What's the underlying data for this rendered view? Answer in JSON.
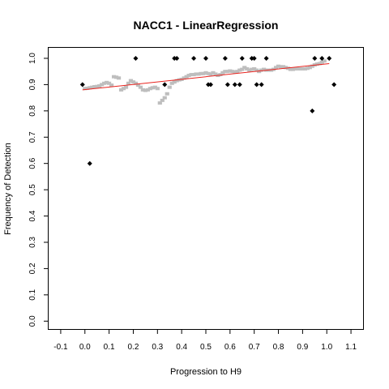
{
  "chart_data": {
    "type": "scatter",
    "title": "NACC1 - LinearRegression",
    "xlabel": "Progression to H9",
    "ylabel": "Frequency of Detection",
    "xlim": [
      -0.15,
      1.15
    ],
    "ylim": [
      -0.03,
      1.04
    ],
    "xticks": [
      -0.1,
      0.0,
      0.1,
      0.2,
      0.3,
      0.4,
      0.5,
      0.6,
      0.7,
      0.8,
      0.9,
      1.0,
      1.1
    ],
    "xtick_labels": [
      "-0.1",
      "0.0",
      "0.1",
      "0.2",
      "0.3",
      "0.4",
      "0.5",
      "0.6",
      "0.7",
      "0.8",
      "0.9",
      "1.0",
      "1.1"
    ],
    "yticks": [
      0.0,
      0.1,
      0.2,
      0.3,
      0.4,
      0.5,
      0.6,
      0.7,
      0.8,
      0.9,
      1.0
    ],
    "ytick_labels": [
      "0.0",
      "0.1",
      "0.2",
      "0.3",
      "0.4",
      "0.5",
      "0.6",
      "0.7",
      "0.8",
      "0.9",
      "1.0"
    ],
    "grid": false,
    "colors": {
      "observed": "#000000",
      "fitted": "#bebebe",
      "regression": "#e8231e"
    },
    "series": [
      {
        "kind": "observed",
        "points": [
          [
            -0.01,
            0.9
          ],
          [
            0.02,
            0.6
          ],
          [
            0.21,
            1.0
          ],
          [
            0.33,
            0.9
          ],
          [
            0.37,
            1.0
          ],
          [
            0.38,
            1.0
          ],
          [
            0.45,
            1.0
          ],
          [
            0.5,
            1.0
          ],
          [
            0.51,
            0.9
          ],
          [
            0.52,
            0.9
          ],
          [
            0.58,
            1.0
          ],
          [
            0.59,
            0.9
          ],
          [
            0.62,
            0.9
          ],
          [
            0.64,
            0.9
          ],
          [
            0.65,
            1.0
          ],
          [
            0.69,
            1.0
          ],
          [
            0.7,
            1.0
          ],
          [
            0.71,
            0.9
          ],
          [
            0.73,
            0.9
          ],
          [
            0.75,
            1.0
          ],
          [
            0.94,
            0.8
          ],
          [
            0.95,
            1.0
          ],
          [
            0.98,
            1.0
          ],
          [
            1.01,
            1.0
          ],
          [
            1.03,
            0.9
          ]
        ]
      },
      {
        "kind": "fitted",
        "points": [
          [
            0.0,
            0.885
          ],
          [
            0.01,
            0.886
          ],
          [
            0.02,
            0.888
          ],
          [
            0.03,
            0.89
          ],
          [
            0.04,
            0.892
          ],
          [
            0.05,
            0.893
          ],
          [
            0.06,
            0.895
          ],
          [
            0.07,
            0.9
          ],
          [
            0.08,
            0.905
          ],
          [
            0.09,
            0.908
          ],
          [
            0.1,
            0.905
          ],
          [
            0.11,
            0.898
          ],
          [
            0.12,
            0.93
          ],
          [
            0.13,
            0.928
          ],
          [
            0.14,
            0.925
          ],
          [
            0.15,
            0.88
          ],
          [
            0.16,
            0.885
          ],
          [
            0.17,
            0.89
          ],
          [
            0.18,
            0.905
          ],
          [
            0.19,
            0.915
          ],
          [
            0.2,
            0.91
          ],
          [
            0.21,
            0.905
          ],
          [
            0.22,
            0.898
          ],
          [
            0.23,
            0.89
          ],
          [
            0.24,
            0.88
          ],
          [
            0.25,
            0.878
          ],
          [
            0.26,
            0.88
          ],
          [
            0.27,
            0.885
          ],
          [
            0.28,
            0.888
          ],
          [
            0.29,
            0.89
          ],
          [
            0.3,
            0.885
          ],
          [
            0.31,
            0.83
          ],
          [
            0.32,
            0.84
          ],
          [
            0.33,
            0.85
          ],
          [
            0.34,
            0.865
          ],
          [
            0.35,
            0.89
          ],
          [
            0.36,
            0.905
          ],
          [
            0.37,
            0.91
          ],
          [
            0.38,
            0.915
          ],
          [
            0.39,
            0.918
          ],
          [
            0.4,
            0.92
          ],
          [
            0.41,
            0.925
          ],
          [
            0.42,
            0.93
          ],
          [
            0.43,
            0.935
          ],
          [
            0.44,
            0.938
          ],
          [
            0.45,
            0.938
          ],
          [
            0.46,
            0.94
          ],
          [
            0.47,
            0.94
          ],
          [
            0.48,
            0.942
          ],
          [
            0.49,
            0.942
          ],
          [
            0.5,
            0.945
          ],
          [
            0.51,
            0.942
          ],
          [
            0.52,
            0.94
          ],
          [
            0.53,
            0.945
          ],
          [
            0.54,
            0.94
          ],
          [
            0.55,
            0.935
          ],
          [
            0.56,
            0.938
          ],
          [
            0.57,
            0.945
          ],
          [
            0.58,
            0.95
          ],
          [
            0.59,
            0.95
          ],
          [
            0.6,
            0.952
          ],
          [
            0.61,
            0.95
          ],
          [
            0.62,
            0.948
          ],
          [
            0.63,
            0.95
          ],
          [
            0.64,
            0.955
          ],
          [
            0.65,
            0.958
          ],
          [
            0.66,
            0.965
          ],
          [
            0.67,
            0.96
          ],
          [
            0.68,
            0.955
          ],
          [
            0.69,
            0.958
          ],
          [
            0.7,
            0.96
          ],
          [
            0.71,
            0.955
          ],
          [
            0.72,
            0.95
          ],
          [
            0.73,
            0.955
          ],
          [
            0.74,
            0.958
          ],
          [
            0.75,
            0.955
          ],
          [
            0.76,
            0.955
          ],
          [
            0.77,
            0.955
          ],
          [
            0.78,
            0.958
          ],
          [
            0.79,
            0.965
          ],
          [
            0.8,
            0.97
          ],
          [
            0.81,
            0.968
          ],
          [
            0.82,
            0.968
          ],
          [
            0.83,
            0.965
          ],
          [
            0.84,
            0.962
          ],
          [
            0.85,
            0.958
          ],
          [
            0.86,
            0.958
          ],
          [
            0.87,
            0.96
          ],
          [
            0.88,
            0.96
          ],
          [
            0.89,
            0.96
          ],
          [
            0.9,
            0.96
          ],
          [
            0.91,
            0.96
          ],
          [
            0.92,
            0.962
          ],
          [
            0.93,
            0.965
          ],
          [
            0.94,
            0.97
          ],
          [
            0.95,
            0.975
          ],
          [
            0.96,
            0.978
          ],
          [
            0.97,
            0.98
          ],
          [
            0.98,
            0.985
          ],
          [
            0.99,
            0.99
          ]
        ]
      },
      {
        "kind": "regression",
        "points": [
          [
            -0.01,
            0.88
          ],
          [
            1.01,
            0.98
          ]
        ]
      }
    ]
  }
}
